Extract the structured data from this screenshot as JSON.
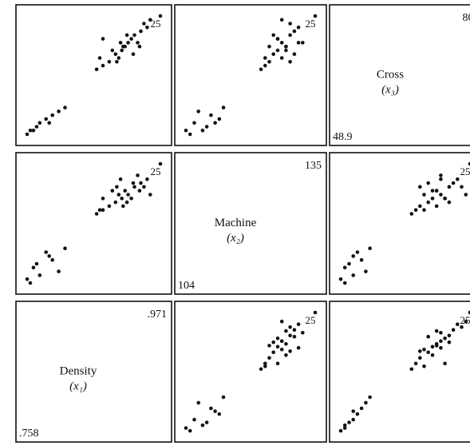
{
  "chart_data": {
    "type": "scatter",
    "layout": "scatterplot matrix (3 x 3, clipped on the right)",
    "variables": [
      {
        "id": "density",
        "name": "Density",
        "symbol": "(x₁)",
        "min_label": ".758",
        "max_label": ".971"
      },
      {
        "id": "machine",
        "name": "Machine",
        "symbol": "(x₂)",
        "min_label": "104",
        "max_label": "135"
      },
      {
        "id": "cross",
        "name": "Cross",
        "symbol": "(x₃)",
        "min_label": "48.9",
        "max_label": "80."
      }
    ],
    "highlighted_observation": "25",
    "observations": [
      {
        "id": 1,
        "x1": 0.92,
        "x2": 127,
        "x3": 73
      },
      {
        "id": 2,
        "x1": 0.91,
        "x2": 126,
        "x3": 71
      },
      {
        "id": 3,
        "x1": 0.93,
        "x2": 129,
        "x3": 75
      },
      {
        "id": 4,
        "x1": 0.9,
        "x2": 125,
        "x3": 70
      },
      {
        "id": 5,
        "x1": 0.94,
        "x2": 130,
        "x3": 76
      },
      {
        "id": 6,
        "x1": 0.89,
        "x2": 124,
        "x3": 68
      },
      {
        "id": 7,
        "x1": 0.915,
        "x2": 128,
        "x3": 72
      },
      {
        "id": 8,
        "x1": 0.95,
        "x2": 131,
        "x3": 77
      },
      {
        "id": 9,
        "x1": 0.88,
        "x2": 123,
        "x3": 67
      },
      {
        "id": 10,
        "x1": 0.925,
        "x2": 126,
        "x3": 74
      },
      {
        "id": 11,
        "x1": 0.905,
        "x2": 127,
        "x3": 69
      },
      {
        "id": 12,
        "x1": 0.935,
        "x2": 132,
        "x3": 73
      },
      {
        "id": 13,
        "x1": 0.87,
        "x2": 122,
        "x3": 66
      },
      {
        "id": 14,
        "x1": 0.945,
        "x2": 129,
        "x3": 78
      },
      {
        "id": 15,
        "x1": 0.895,
        "x2": 128,
        "x3": 71
      },
      {
        "id": 16,
        "x1": 0.912,
        "x2": 124,
        "x3": 72
      },
      {
        "id": 17,
        "x1": 0.928,
        "x2": 130,
        "x3": 70
      },
      {
        "id": 18,
        "x1": 0.88,
        "x2": 126,
        "x3": 74
      },
      {
        "id": 19,
        "x1": 0.955,
        "x2": 127,
        "x3": 79
      },
      {
        "id": 20,
        "x1": 0.902,
        "x2": 129,
        "x3": 68
      },
      {
        "id": 21,
        "x1": 0.918,
        "x2": 125,
        "x3": 75
      },
      {
        "id": 22,
        "x1": 0.875,
        "x2": 123,
        "x3": 69
      },
      {
        "id": 23,
        "x1": 0.938,
        "x2": 128,
        "x3": 72
      },
      {
        "id": 24,
        "x1": 0.908,
        "x2": 131,
        "x3": 73
      },
      {
        "id": 25,
        "x1": 0.971,
        "x2": 135,
        "x3": 80
      },
      {
        "id": 26,
        "x1": 0.78,
        "x2": 106,
        "x3": 52
      },
      {
        "id": 27,
        "x1": 0.77,
        "x2": 108,
        "x3": 50
      },
      {
        "id": 28,
        "x1": 0.8,
        "x2": 110,
        "x3": 54
      },
      {
        "id": 29,
        "x1": 0.76,
        "x2": 105,
        "x3": 49
      },
      {
        "id": 30,
        "x1": 0.79,
        "x2": 112,
        "x3": 53
      },
      {
        "id": 31,
        "x1": 0.81,
        "x2": 107,
        "x3": 55
      },
      {
        "id": 32,
        "x1": 0.775,
        "x2": 109,
        "x3": 51
      },
      {
        "id": 33,
        "x1": 0.795,
        "x2": 111,
        "x3": 52
      },
      {
        "id": 34,
        "x1": 0.82,
        "x2": 113,
        "x3": 56
      },
      {
        "id": 35,
        "x1": 0.765,
        "x2": 104,
        "x3": 50
      }
    ]
  }
}
